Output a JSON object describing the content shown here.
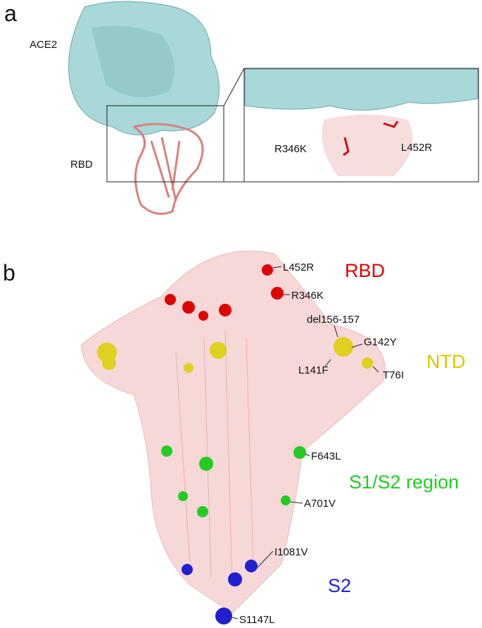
{
  "panel_a": {
    "label": "a",
    "protein": "ACE2",
    "domain": "RBD",
    "inset_mutations": [
      "R346K",
      "L452R"
    ]
  },
  "panel_b": {
    "label": "b",
    "mutations": [
      "L452R",
      "R346K",
      "del156-157",
      "G142Y",
      "L141F",
      "T76I",
      "F643L",
      "A701V",
      "I1081V",
      "S1147L"
    ],
    "regions": [
      {
        "name": "RBD",
        "color": "#e00000"
      },
      {
        "name": "NTD",
        "color": "#d6c800"
      },
      {
        "name": "S1/S2 region",
        "color": "#22cc22"
      },
      {
        "name": "S2",
        "color": "#2020d0"
      }
    ]
  }
}
